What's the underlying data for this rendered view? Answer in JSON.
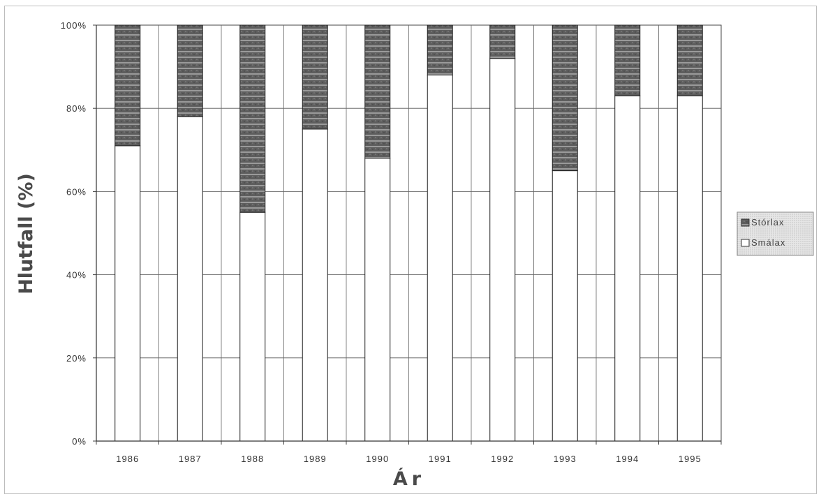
{
  "chart_data": {
    "type": "bar",
    "stacked": true,
    "categories": [
      "1986",
      "1987",
      "1988",
      "1989",
      "1990",
      "1991",
      "1992",
      "1993",
      "1994",
      "1995"
    ],
    "series": [
      {
        "name": "Smálax",
        "values": [
          71,
          78,
          55,
          75,
          68,
          88,
          92,
          65,
          83,
          83
        ]
      },
      {
        "name": "Stórlax",
        "values": [
          29,
          22,
          45,
          25,
          32,
          12,
          8,
          35,
          17,
          17
        ]
      }
    ],
    "ylim": [
      0,
      100
    ],
    "yticks": [
      "0%",
      "20%",
      "40%",
      "60%",
      "80%",
      "100%"
    ],
    "ylabel": "Hlutfall (%)",
    "xlabel": "Ár",
    "grid": true,
    "legend": "right",
    "colors": {
      "Smálax": "#ffffff",
      "Stórlax": "#5e5e5e",
      "stripe": "#d6d6d6",
      "legend_bg": "#e4e4e4"
    }
  }
}
